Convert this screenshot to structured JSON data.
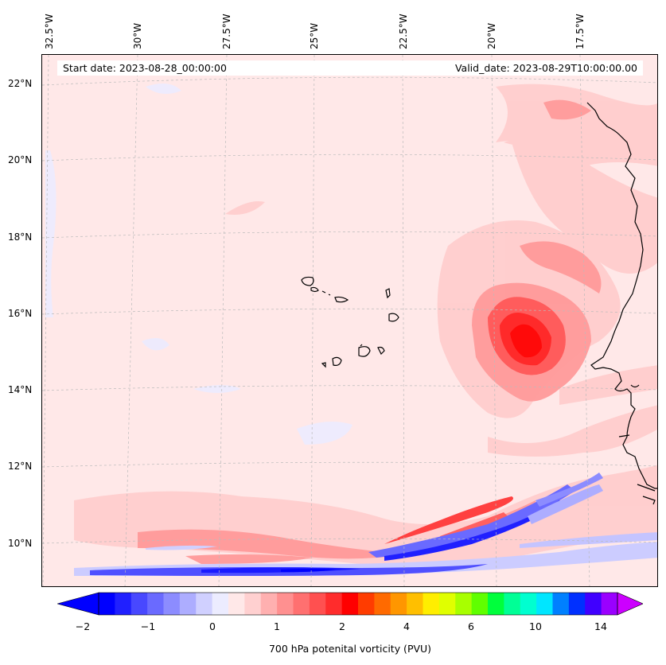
{
  "header": {
    "start_date": "Start date: 2023-08-28_00:00:00",
    "valid_date": "Valid_date: 2023-08-29T10:00:00.00"
  },
  "map": {
    "lon_labels": [
      "32.5°W",
      "30°W",
      "27.5°W",
      "25°W",
      "22.5°W",
      "20°W",
      "17.5°W"
    ],
    "lat_labels": [
      "22°N",
      "20°N",
      "18°N",
      "16°N",
      "14°N",
      "12°N",
      "10°N"
    ],
    "background_color": "#ffe8e8",
    "coastline_color": "#000000"
  },
  "colorbar": {
    "title": "700 hPa potenital vorticity (PVU)",
    "tick_labels": [
      "−2",
      "−1",
      "0",
      "1",
      "2",
      "4",
      "6",
      "10",
      "14"
    ],
    "colors": [
      "#0000ff",
      "#2020ff",
      "#4848ff",
      "#6a6aff",
      "#8c8cff",
      "#adadff",
      "#d0d0ff",
      "#ececff",
      "#ffe8e8",
      "#ffd0d0",
      "#ffb0b0",
      "#ff9090",
      "#ff7070",
      "#ff5050",
      "#ff2c2c",
      "#ff0000",
      "#ff3c00",
      "#ff6a00",
      "#ff9600",
      "#ffbf00",
      "#ffee00",
      "#e0ff00",
      "#a8ff00",
      "#60ff00",
      "#00ff3c",
      "#00ff96",
      "#00ffd0",
      "#00e6ff",
      "#0080ff",
      "#0030ff",
      "#4000ff",
      "#9a00ff"
    ],
    "under_color": "#0000ff",
    "over_color": "#cc00ff"
  }
}
